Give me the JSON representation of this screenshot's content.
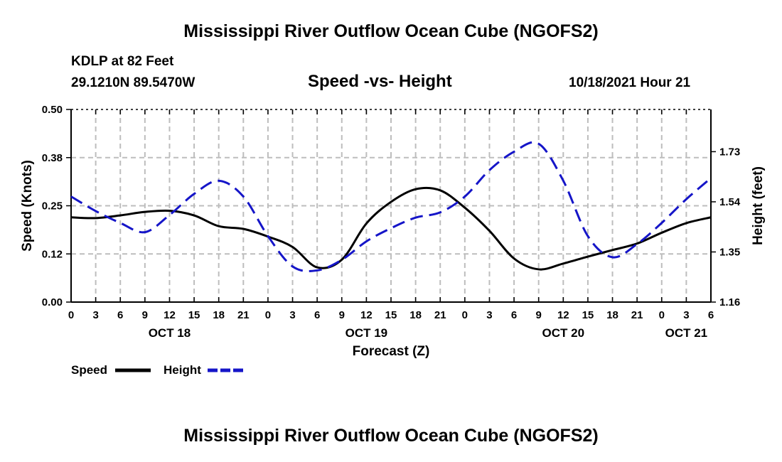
{
  "header": {
    "title": "Mississippi River Outflow Ocean Cube (NGOFS2)",
    "station": "KDLP at 82 Feet",
    "coords": "29.1210N  89.5470W",
    "subtitle": "Speed -vs- Height",
    "datetime": "10/18/2021 Hour 21",
    "footer_title": "Mississippi River Outflow Ocean Cube (NGOFS2)"
  },
  "colors": {
    "speed": "#000000",
    "height": "#1515c8",
    "grid": "#bdbdbd"
  },
  "chart_data": {
    "type": "line",
    "title": "Speed -vs- Height",
    "xlabel": "Forecast (Z)",
    "ylabel": "Speed (Knots)",
    "y2label": "Height (feet)",
    "xlim": [
      0,
      78
    ],
    "ylim": [
      0,
      0.5
    ],
    "y2lim": [
      1.16,
      1.89
    ],
    "x_ticks": [
      0,
      3,
      6,
      9,
      12,
      15,
      18,
      21,
      24,
      27,
      30,
      33,
      36,
      39,
      42,
      45,
      48,
      51,
      54,
      57,
      60,
      63,
      66,
      69,
      72,
      75,
      78
    ],
    "x_tick_labels": [
      "0",
      "3",
      "6",
      "9",
      "12",
      "15",
      "18",
      "21",
      "0",
      "3",
      "6",
      "9",
      "12",
      "15",
      "18",
      "21",
      "0",
      "3",
      "6",
      "9",
      "12",
      "15",
      "18",
      "21",
      "0",
      "3",
      "6"
    ],
    "y_ticks": [
      0,
      0.125,
      0.25,
      0.375,
      0.5
    ],
    "y_tick_labels": [
      "0.00",
      "0.12",
      "0.25",
      "0.38",
      "0.50"
    ],
    "y2_ticks": [
      1.16,
      1.35,
      1.54,
      1.73
    ],
    "y2_tick_labels": [
      "1.16",
      "1.35",
      "1.54",
      "1.73"
    ],
    "date_labels": [
      {
        "x": 12,
        "label": "OCT 18"
      },
      {
        "x": 36,
        "label": "OCT 19"
      },
      {
        "x": 60,
        "label": "OCT 20"
      },
      {
        "x": 75,
        "label": "OCT 21"
      }
    ],
    "grid": true,
    "legend": [
      {
        "name": "Speed",
        "style": "solid"
      },
      {
        "name": "Height",
        "style": "dashed"
      }
    ],
    "series": [
      {
        "name": "Speed",
        "axis": "left",
        "style": "solid",
        "x": [
          0,
          3,
          6,
          9,
          12,
          15,
          18,
          21,
          24,
          27,
          30,
          33,
          36,
          39,
          42,
          45,
          48,
          51,
          54,
          57,
          60,
          63,
          66,
          69,
          72,
          75,
          78
        ],
        "values": [
          0.22,
          0.218,
          0.225,
          0.234,
          0.237,
          0.225,
          0.197,
          0.19,
          0.17,
          0.143,
          0.09,
          0.11,
          0.204,
          0.26,
          0.293,
          0.29,
          0.245,
          0.185,
          0.113,
          0.085,
          0.1,
          0.118,
          0.135,
          0.152,
          0.18,
          0.205,
          0.22
        ]
      },
      {
        "name": "Height",
        "axis": "right",
        "style": "dashed",
        "x": [
          0,
          3,
          6,
          9,
          12,
          15,
          18,
          21,
          24,
          27,
          30,
          33,
          36,
          39,
          42,
          45,
          48,
          51,
          54,
          57,
          60,
          63,
          66,
          69,
          72,
          75,
          78
        ],
        "values": [
          1.56,
          1.505,
          1.46,
          1.425,
          1.49,
          1.57,
          1.62,
          1.56,
          1.41,
          1.295,
          1.28,
          1.32,
          1.39,
          1.44,
          1.48,
          1.5,
          1.56,
          1.66,
          1.73,
          1.76,
          1.62,
          1.41,
          1.33,
          1.38,
          1.46,
          1.55,
          1.63
        ]
      }
    ]
  }
}
